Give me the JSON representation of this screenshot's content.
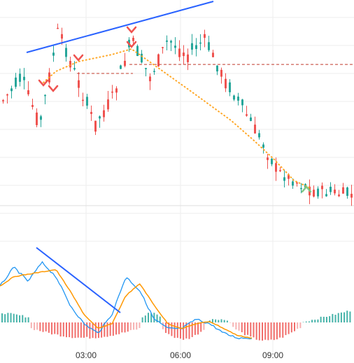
{
  "colors": {
    "up": "#26a69a",
    "down": "#ef5350",
    "up_light": "#a5d6a7",
    "down_light": "#f5a3a3",
    "grid": "#eeeeee",
    "trendline": "#2962ff",
    "dotted_path": "#ffa726",
    "resistance": "#c0392b",
    "macd_line": "#2196f3",
    "signal_line": "#ff9800",
    "sell_marker": "#ef5350",
    "buy_marker": "#81c784"
  },
  "chart_data": [
    {
      "type": "candlestick",
      "title": "",
      "x_ticks": [
        "03:00",
        "06:00",
        "09:00"
      ],
      "grid": true,
      "legend": "none",
      "price_path": [
        0.42,
        0.3,
        0.55,
        0.05,
        0.3,
        0.55,
        0.4,
        0.1,
        0.3,
        0.1,
        0.18,
        0.1,
        0.3,
        0.45,
        0.62,
        0.8,
        0.85,
        0.9,
        0.91,
        0.92
      ],
      "resistance_level": 0.23,
      "trend_annotations": [
        "up-trend over price highs",
        "down-trend over MACD highs"
      ],
      "sell_signals": 5,
      "buy_signals": 1
    },
    {
      "type": "macd",
      "macd_path": [
        0.4,
        0.2,
        0.35,
        0.15,
        0.3,
        0.6,
        0.8,
        0.9,
        0.7,
        0.3,
        0.45,
        0.75,
        0.85,
        0.85,
        0.75,
        0.8,
        0.9,
        0.95,
        0.95
      ],
      "histogram_shape": "positive at start, negative through mid, mixed, then positive at end"
    }
  ]
}
